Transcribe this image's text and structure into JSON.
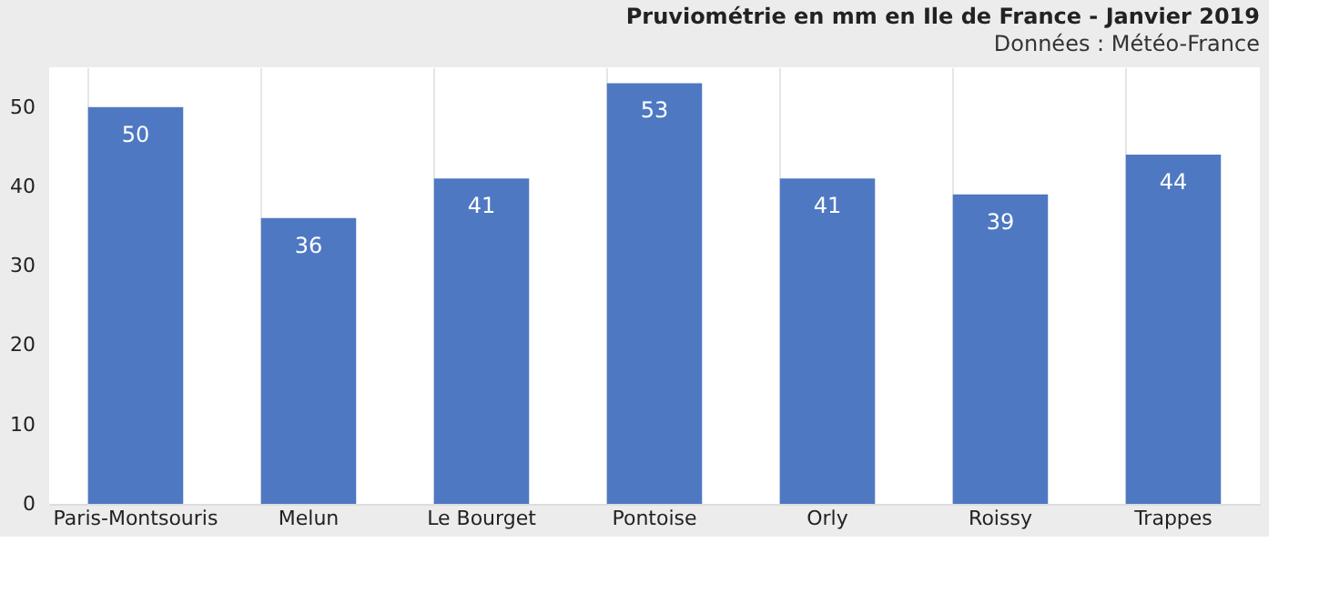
{
  "chart_data": {
    "type": "bar",
    "title": "Pruviométrie en mm en Ile de France - Janvier 2019",
    "subtitle": "Données : Météo-France",
    "categories": [
      "Paris-Montsouris",
      "Melun",
      "Le Bourget",
      "Pontoise",
      "Orly",
      "Roissy",
      "Trappes"
    ],
    "values": [
      50,
      36,
      41,
      53,
      41,
      39,
      44
    ],
    "color": "#4e78c2",
    "ylim": [
      0,
      55
    ],
    "yticks": [
      0,
      10,
      20,
      30,
      40,
      50
    ],
    "grid": "x",
    "data_labels": true
  }
}
